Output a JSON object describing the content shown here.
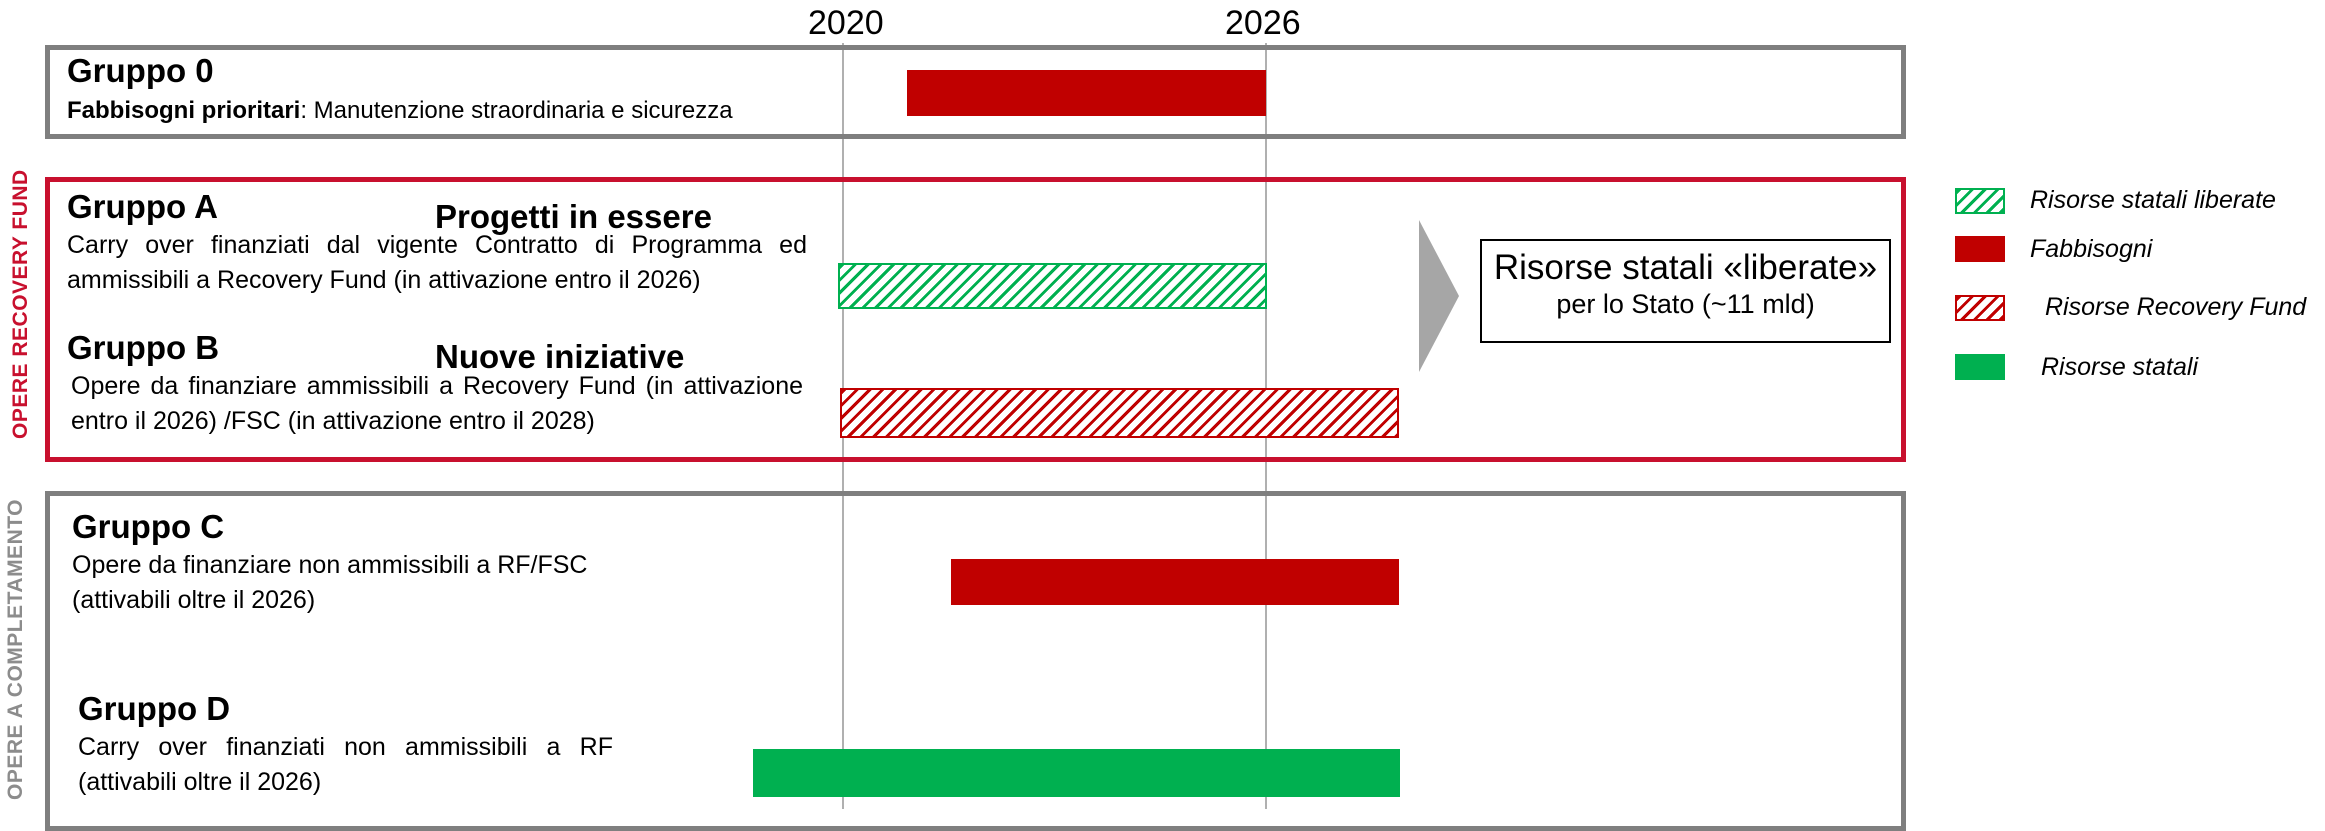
{
  "timeline": {
    "year_start": "2020",
    "year_mid": "2026"
  },
  "colors": {
    "red": "#c00000",
    "green": "#00b050",
    "frame_red": "#c8102e",
    "frame_grey": "#7f7f7f"
  },
  "side_labels": {
    "recovery": "OPERE RECOVERY FUND",
    "completamento": "OPERE A COMPLETAMENTO"
  },
  "group0": {
    "title": "Gruppo 0",
    "desc_bold": "Fabbisogni prioritari",
    "desc_rest": ": Manutenzione straordinaria e sicurezza"
  },
  "groupA": {
    "title": "Gruppo A",
    "subtitle": "Progetti in essere",
    "desc": "Carry over finanziati dal vigente Contratto di Programma ed ammissibili a Recovery Fund (in attivazione entro il 2026)"
  },
  "groupB": {
    "title": "Gruppo B",
    "subtitle": "Nuove iniziative",
    "desc": "Opere da finanziare ammissibili a Recovery Fund (in attivazione entro il 2026) /FSC (in attivazione entro il 2028)"
  },
  "groupC": {
    "title": "Gruppo C",
    "desc": "Opere da finanziare non ammissibili a RF/FSC (attivabili oltre il 2026)"
  },
  "groupD": {
    "title": "Gruppo D",
    "desc": "Carry over finanziati non ammissibili a RF (attivabili oltre il 2026)"
  },
  "callout": {
    "main": "Risorse statali «liberate»",
    "sub": "per lo Stato (~11 mld)",
    "arrow_icon": "chevron-right-icon"
  },
  "legend": [
    {
      "label": "Risorse statali liberate",
      "style": "hatch-green"
    },
    {
      "label": "Fabbisogni",
      "style": "solid-red"
    },
    {
      "label": "Risorse Recovery Fund",
      "style": "hatch-red"
    },
    {
      "label": "Risorse statali",
      "style": "solid-green"
    }
  ]
}
